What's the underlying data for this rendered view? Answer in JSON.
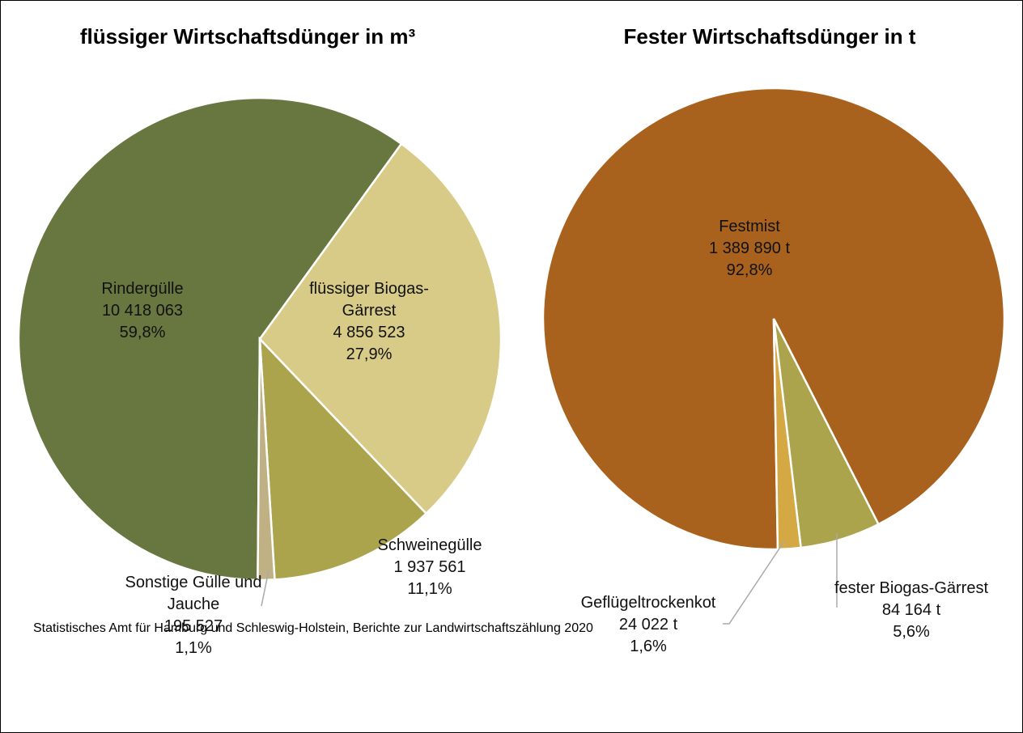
{
  "chart_data": [
    {
      "type": "pie",
      "title": "flüssiger Wirtschaftsdünger in m³",
      "categories": [
        "Rindergülle",
        "flüssiger Biogas-Gärrest",
        "Schweinegülle",
        "Sonstige Gülle und Jauche"
      ],
      "values": [
        10418063,
        4856523,
        1937561,
        195527
      ],
      "value_labels": [
        "10 418 063",
        "4 856 523",
        "1 937 561",
        "195 527"
      ],
      "percents": [
        59.8,
        27.9,
        11.1,
        1.1
      ],
      "percent_labels": [
        "59,8%",
        "27,9%",
        "11,1%",
        "1,1%"
      ],
      "colors": [
        "#68773f",
        "#d8cb87",
        "#aba44d",
        "#c0b184"
      ]
    },
    {
      "type": "pie",
      "title": "Fester Wirtschaftsdünger in t",
      "categories": [
        "Festmist",
        "fester Biogas-Gärrest",
        "Geflügeltrockenkot"
      ],
      "values": [
        1389890,
        84164,
        24022
      ],
      "value_labels": [
        "1 389 890 t",
        "84 164 t",
        "24 022 t"
      ],
      "percents": [
        92.8,
        5.6,
        1.6
      ],
      "percent_labels": [
        "92,8%",
        "5,6%",
        "1,6%"
      ],
      "colors": [
        "#a9621d",
        "#aba44d",
        "#d4a843"
      ]
    }
  ],
  "source": "Statistisches Amt für Hamburg und Schleswig-Holstein, Berichte zur Landwirtschaftszählung 2020"
}
